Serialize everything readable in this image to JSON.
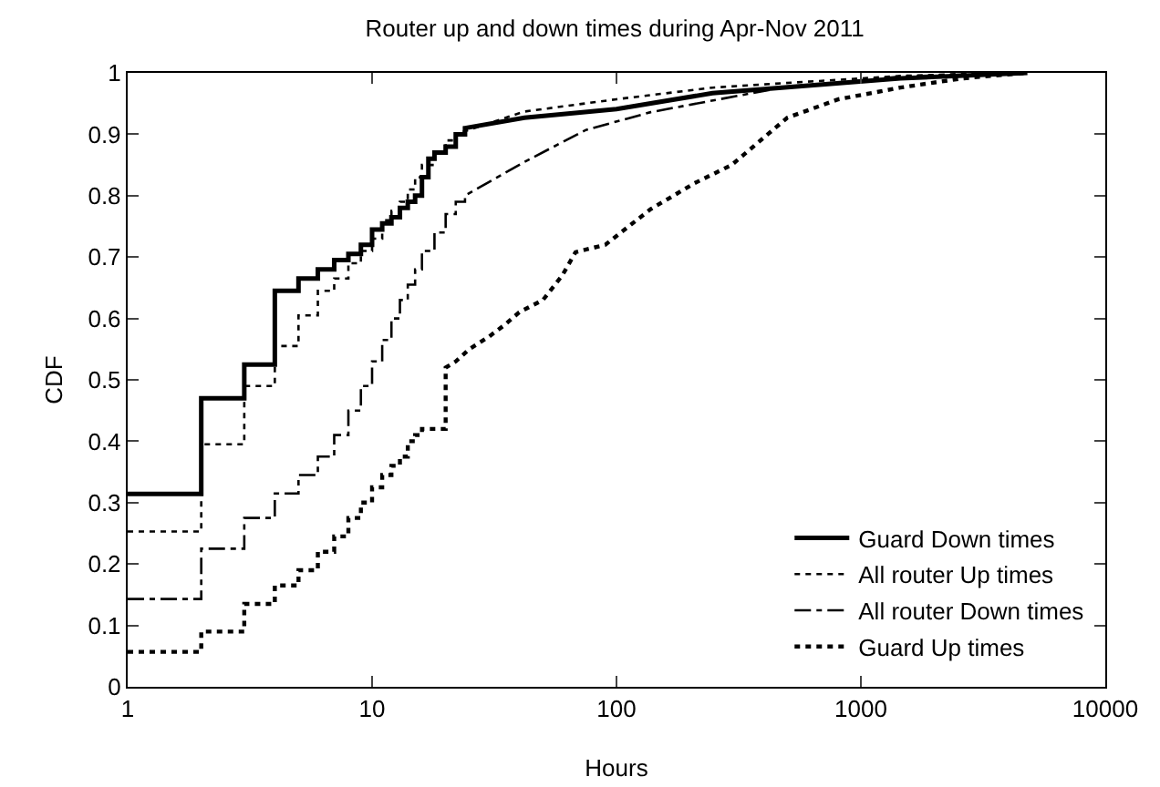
{
  "chart_data": {
    "type": "line",
    "title": "Router up and down times during Apr-Nov 2011",
    "xlabel": "Hours",
    "ylabel": "CDF",
    "log": "x",
    "xlim": [
      1,
      10000
    ],
    "xticks": [
      1,
      10,
      100,
      1000,
      10000
    ],
    "ylim": [
      0,
      1
    ],
    "yticks": [
      0,
      0.1,
      0.2,
      0.3,
      0.4,
      0.5,
      0.6,
      0.7,
      0.8,
      0.9,
      1
    ],
    "grid": false,
    "legend": "bottom right",
    "marker": "none",
    "series": [
      {
        "name": "Guard Down times",
        "color": "#000000",
        "line_style": "solid",
        "x": [
          1,
          2,
          2,
          3,
          3,
          4,
          4,
          5,
          5,
          6,
          6,
          7,
          7,
          8,
          8,
          9,
          9,
          10,
          10,
          11,
          11,
          12,
          12,
          13,
          13,
          14,
          14,
          15,
          15,
          16,
          16,
          17,
          17,
          18,
          18,
          20,
          20,
          22,
          22,
          24,
          24,
          42,
          100,
          247,
          1450,
          4800
        ],
        "values": [
          0.314,
          0.314,
          0.47,
          0.47,
          0.525,
          0.525,
          0.645,
          0.645,
          0.665,
          0.665,
          0.68,
          0.68,
          0.695,
          0.695,
          0.705,
          0.705,
          0.72,
          0.72,
          0.745,
          0.745,
          0.755,
          0.755,
          0.765,
          0.765,
          0.78,
          0.78,
          0.79,
          0.79,
          0.8,
          0.8,
          0.83,
          0.83,
          0.86,
          0.86,
          0.87,
          0.87,
          0.88,
          0.88,
          0.9,
          0.9,
          0.91,
          0.927,
          0.941,
          0.967,
          0.991,
          1
        ]
      },
      {
        "name": "All router Up times",
        "color": "#000000",
        "line_style": "dotted",
        "x": [
          1,
          2,
          2,
          3,
          3,
          4,
          4,
          5,
          5,
          6,
          6,
          7,
          7,
          8,
          8,
          9,
          9,
          10,
          10,
          11,
          11,
          12,
          12,
          13,
          13,
          14,
          14,
          15,
          15,
          16,
          16,
          18,
          18,
          20,
          20,
          22,
          22,
          42,
          100,
          247,
          1450,
          3500
        ],
        "values": [
          0.253,
          0.253,
          0.395,
          0.395,
          0.49,
          0.49,
          0.555,
          0.555,
          0.605,
          0.605,
          0.645,
          0.645,
          0.665,
          0.665,
          0.69,
          0.69,
          0.71,
          0.71,
          0.73,
          0.73,
          0.76,
          0.76,
          0.775,
          0.775,
          0.79,
          0.79,
          0.81,
          0.81,
          0.83,
          0.83,
          0.85,
          0.85,
          0.87,
          0.87,
          0.89,
          0.89,
          0.9,
          0.937,
          0.957,
          0.976,
          0.995,
          1
        ]
      },
      {
        "name": "All router Down times",
        "color": "#000000",
        "line_style": "dashed",
        "x": [
          1,
          2,
          2,
          3,
          3,
          4,
          4,
          5,
          5,
          6,
          6,
          7,
          7,
          8,
          8,
          9,
          9,
          10,
          10,
          11,
          11,
          12,
          12,
          13,
          13,
          14,
          14,
          15,
          15,
          16,
          16,
          18,
          18,
          20,
          20,
          22,
          22,
          24,
          24,
          42,
          75,
          138,
          446,
          1450,
          4200
        ],
        "values": [
          0.143,
          0.143,
          0.225,
          0.225,
          0.275,
          0.275,
          0.315,
          0.315,
          0.345,
          0.345,
          0.375,
          0.375,
          0.41,
          0.41,
          0.45,
          0.45,
          0.49,
          0.49,
          0.53,
          0.53,
          0.565,
          0.565,
          0.6,
          0.6,
          0.63,
          0.63,
          0.655,
          0.655,
          0.68,
          0.68,
          0.71,
          0.71,
          0.74,
          0.74,
          0.77,
          0.77,
          0.79,
          0.79,
          0.8,
          0.855,
          0.907,
          0.936,
          0.974,
          0.994,
          1
        ]
      },
      {
        "name": "Guard Up times",
        "color": "#000000",
        "line_style": "dotted",
        "x": [
          1,
          2,
          2,
          3,
          3,
          4,
          4,
          5,
          5,
          6,
          6,
          7,
          7,
          8,
          8,
          9,
          9,
          10,
          10,
          11,
          11,
          12,
          12,
          13,
          13,
          14,
          14,
          15,
          15,
          16,
          16,
          20,
          20,
          22,
          25,
          30,
          35,
          40,
          50,
          60,
          68,
          90,
          138,
          208,
          296,
          500,
          810,
          1450,
          2600,
          4800
        ],
        "values": [
          0.057,
          0.057,
          0.09,
          0.09,
          0.135,
          0.135,
          0.165,
          0.165,
          0.19,
          0.19,
          0.22,
          0.22,
          0.245,
          0.245,
          0.275,
          0.275,
          0.3,
          0.3,
          0.325,
          0.325,
          0.345,
          0.345,
          0.36,
          0.36,
          0.375,
          0.375,
          0.4,
          0.4,
          0.41,
          0.41,
          0.42,
          0.42,
          0.52,
          0.53,
          0.55,
          0.57,
          0.59,
          0.61,
          0.63,
          0.67,
          0.708,
          0.72,
          0.778,
          0.82,
          0.85,
          0.927,
          0.957,
          0.976,
          0.991,
          1
        ]
      }
    ]
  }
}
